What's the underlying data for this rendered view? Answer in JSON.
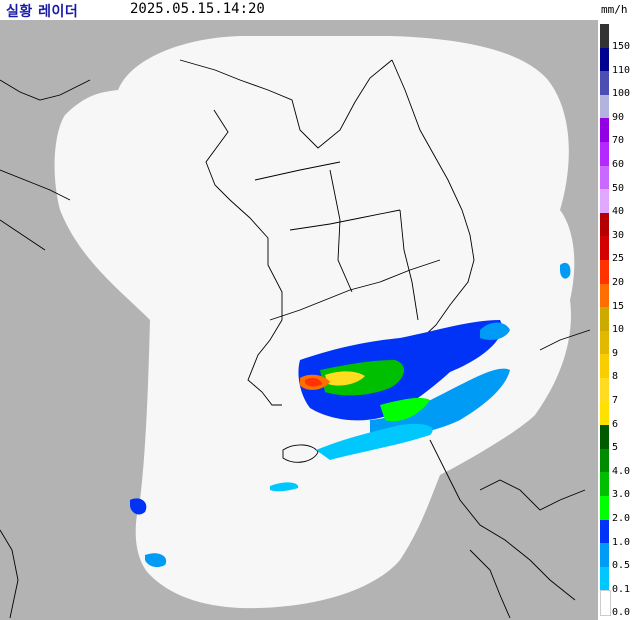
{
  "header": {
    "title": "실황 레이더",
    "timestamp": "2025.05.15.14:20",
    "unit": "mm/h"
  },
  "legend": {
    "items": [
      {
        "label": "150",
        "color": "#333333"
      },
      {
        "label": "110",
        "color": "#000390"
      },
      {
        "label": "100",
        "color": "#4c4eb1"
      },
      {
        "label": "90",
        "color": "#b3b4de"
      },
      {
        "label": "70",
        "color": "#9300e4"
      },
      {
        "label": "60",
        "color": "#b329ff"
      },
      {
        "label": "50",
        "color": "#c969ff"
      },
      {
        "label": "40",
        "color": "#e0a9ff"
      },
      {
        "label": "30",
        "color": "#b40000"
      },
      {
        "label": "25",
        "color": "#d20000"
      },
      {
        "label": "20",
        "color": "#ff3200"
      },
      {
        "label": "15",
        "color": "#ff6e00"
      },
      {
        "label": "10",
        "color": "#ccaa00"
      },
      {
        "label": "9",
        "color": "#e0b900"
      },
      {
        "label": "8",
        "color": "#f9cd00"
      },
      {
        "label": "7",
        "color": "#ffdc1f"
      },
      {
        "label": "6",
        "color": "#ffe100"
      },
      {
        "label": "5",
        "color": "#005a00"
      },
      {
        "label": "4.0",
        "color": "#008c00"
      },
      {
        "label": "3.0",
        "color": "#00be00"
      },
      {
        "label": "2.0",
        "color": "#00ff00"
      },
      {
        "label": "1.0",
        "color": "#0033f5"
      },
      {
        "label": "0.5",
        "color": "#009bf5"
      },
      {
        "label": "0.1",
        "color": "#00c8ff"
      },
      {
        "label": "0.0",
        "color": "#ffffff"
      }
    ]
  },
  "colors": {
    "outside_range": "#b3b3b3",
    "coverage": "#f7f7f7",
    "land_outline": "#000000"
  },
  "icons": {
    "map": "radar-map"
  }
}
